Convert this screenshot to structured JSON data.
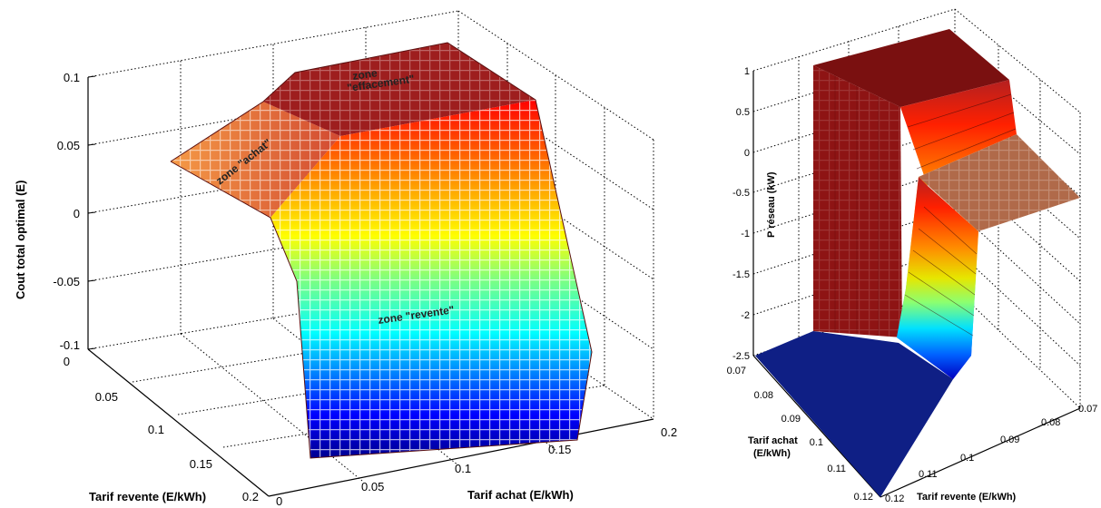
{
  "chart_data": [
    {
      "type": "surface",
      "zlabel": "Cout total optimal  (E)",
      "xlabel": "Tarif achat  (E/kWh)",
      "ylabel": "Tarif revente (E/kWh)",
      "zlim": [
        -0.1,
        0.1
      ],
      "xlim": [
        0,
        0.2
      ],
      "ylim": [
        0,
        0.2
      ],
      "z_ticks": [
        "0.1",
        "0.05",
        "0",
        "-0.05",
        "-0.1"
      ],
      "x_ticks": [
        "0",
        "0.05",
        "0.1",
        "0.15",
        "0.2"
      ],
      "y_ticks": [
        "0",
        "0.05",
        "0.1",
        "0.15",
        "0.2"
      ],
      "grid": true,
      "colormap": "jet",
      "annotations": [
        "zone \"achat\"",
        "zone",
        "\"effacement\"",
        "zone \"revente\""
      ]
    },
    {
      "type": "surface",
      "zlabel": "P réseau   (kW)",
      "xlabel": "Tarif revente  (E/kWh)",
      "ylabel": "Tarif achat\n(E/kWh)",
      "zlim": [
        -2.5,
        1
      ],
      "z_ticks": [
        "1",
        "0.5",
        "0",
        "-0.5",
        "-1",
        "-1.5",
        "-2",
        "-2.5"
      ],
      "y_ticks": [
        "0.07",
        "0.08",
        "0.09",
        "0.1",
        "0.11",
        "0.12"
      ],
      "x_ticks": [
        "0.12",
        "0.11",
        "0.1",
        "0.09",
        "0.08",
        "0.07"
      ],
      "grid": true,
      "colormap": "jet"
    }
  ]
}
